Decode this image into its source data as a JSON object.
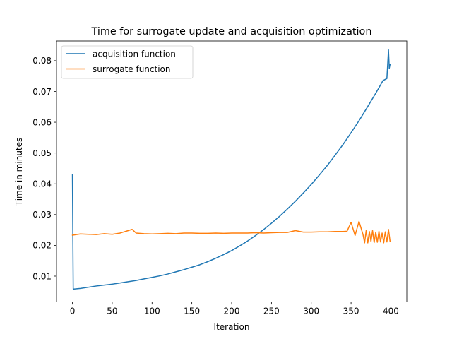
{
  "chart_data": {
    "type": "line",
    "title": "Time for surrogate update and acquisition optimization",
    "xlabel": "Iteration",
    "ylabel": "Time in minutes",
    "xlim": [
      -20,
      420
    ],
    "ylim": [
      0.0016,
      0.0864
    ],
    "xticks": [
      0,
      50,
      100,
      150,
      200,
      250,
      300,
      350,
      400
    ],
    "yticks": [
      0.01,
      0.02,
      0.03,
      0.04,
      0.05,
      0.06,
      0.07,
      0.08
    ],
    "ytick_labels": [
      "0.01",
      "0.02",
      "0.03",
      "0.04",
      "0.05",
      "0.06",
      "0.07",
      "0.08"
    ],
    "legend_position": "top-left",
    "grid": false,
    "series": [
      {
        "name": "acquisition function",
        "color": "#1f77b4",
        "x": [
          0,
          1,
          2,
          10,
          20,
          30,
          40,
          50,
          60,
          70,
          80,
          90,
          100,
          110,
          120,
          130,
          140,
          150,
          160,
          170,
          180,
          190,
          200,
          210,
          220,
          230,
          240,
          250,
          260,
          270,
          280,
          290,
          300,
          310,
          320,
          330,
          340,
          350,
          360,
          370,
          380,
          385,
          390,
          395,
          397,
          398,
          399
        ],
        "y": [
          0.043,
          0.0058,
          0.0058,
          0.006,
          0.0064,
          0.0068,
          0.0071,
          0.0074,
          0.0078,
          0.0082,
          0.0086,
          0.0091,
          0.0096,
          0.0101,
          0.0107,
          0.0114,
          0.0121,
          0.0129,
          0.0137,
          0.0147,
          0.0158,
          0.017,
          0.0183,
          0.0198,
          0.0214,
          0.0232,
          0.0251,
          0.0272,
          0.0294,
          0.0318,
          0.0343,
          0.037,
          0.0398,
          0.0428,
          0.0459,
          0.0493,
          0.0528,
          0.0566,
          0.0605,
          0.0647,
          0.069,
          0.0712,
          0.0735,
          0.0742,
          0.0835,
          0.0775,
          0.0788
        ]
      },
      {
        "name": "surrogate function",
        "color": "#ff7f0e",
        "x": [
          0,
          10,
          20,
          30,
          40,
          50,
          60,
          70,
          75,
          80,
          90,
          100,
          110,
          120,
          130,
          140,
          150,
          160,
          170,
          180,
          190,
          200,
          210,
          220,
          230,
          240,
          250,
          260,
          270,
          280,
          290,
          300,
          310,
          320,
          330,
          340,
          345,
          350,
          355,
          360,
          365,
          367,
          369,
          371,
          373,
          375,
          377,
          379,
          381,
          383,
          385,
          387,
          389,
          391,
          393,
          395,
          397,
          399
        ],
        "y": [
          0.0233,
          0.0237,
          0.0236,
          0.0235,
          0.0238,
          0.0236,
          0.024,
          0.0248,
          0.0252,
          0.024,
          0.0238,
          0.0237,
          0.0238,
          0.0239,
          0.0238,
          0.024,
          0.024,
          0.0239,
          0.0239,
          0.024,
          0.0239,
          0.024,
          0.024,
          0.024,
          0.0241,
          0.024,
          0.0241,
          0.0242,
          0.0242,
          0.0248,
          0.0243,
          0.0243,
          0.0244,
          0.0244,
          0.0245,
          0.0245,
          0.0246,
          0.0275,
          0.0232,
          0.0278,
          0.0235,
          0.0208,
          0.0249,
          0.0208,
          0.0245,
          0.0212,
          0.0248,
          0.0209,
          0.0243,
          0.021,
          0.0246,
          0.0211,
          0.024,
          0.0208,
          0.0244,
          0.0211,
          0.0252,
          0.0213
        ]
      }
    ]
  }
}
